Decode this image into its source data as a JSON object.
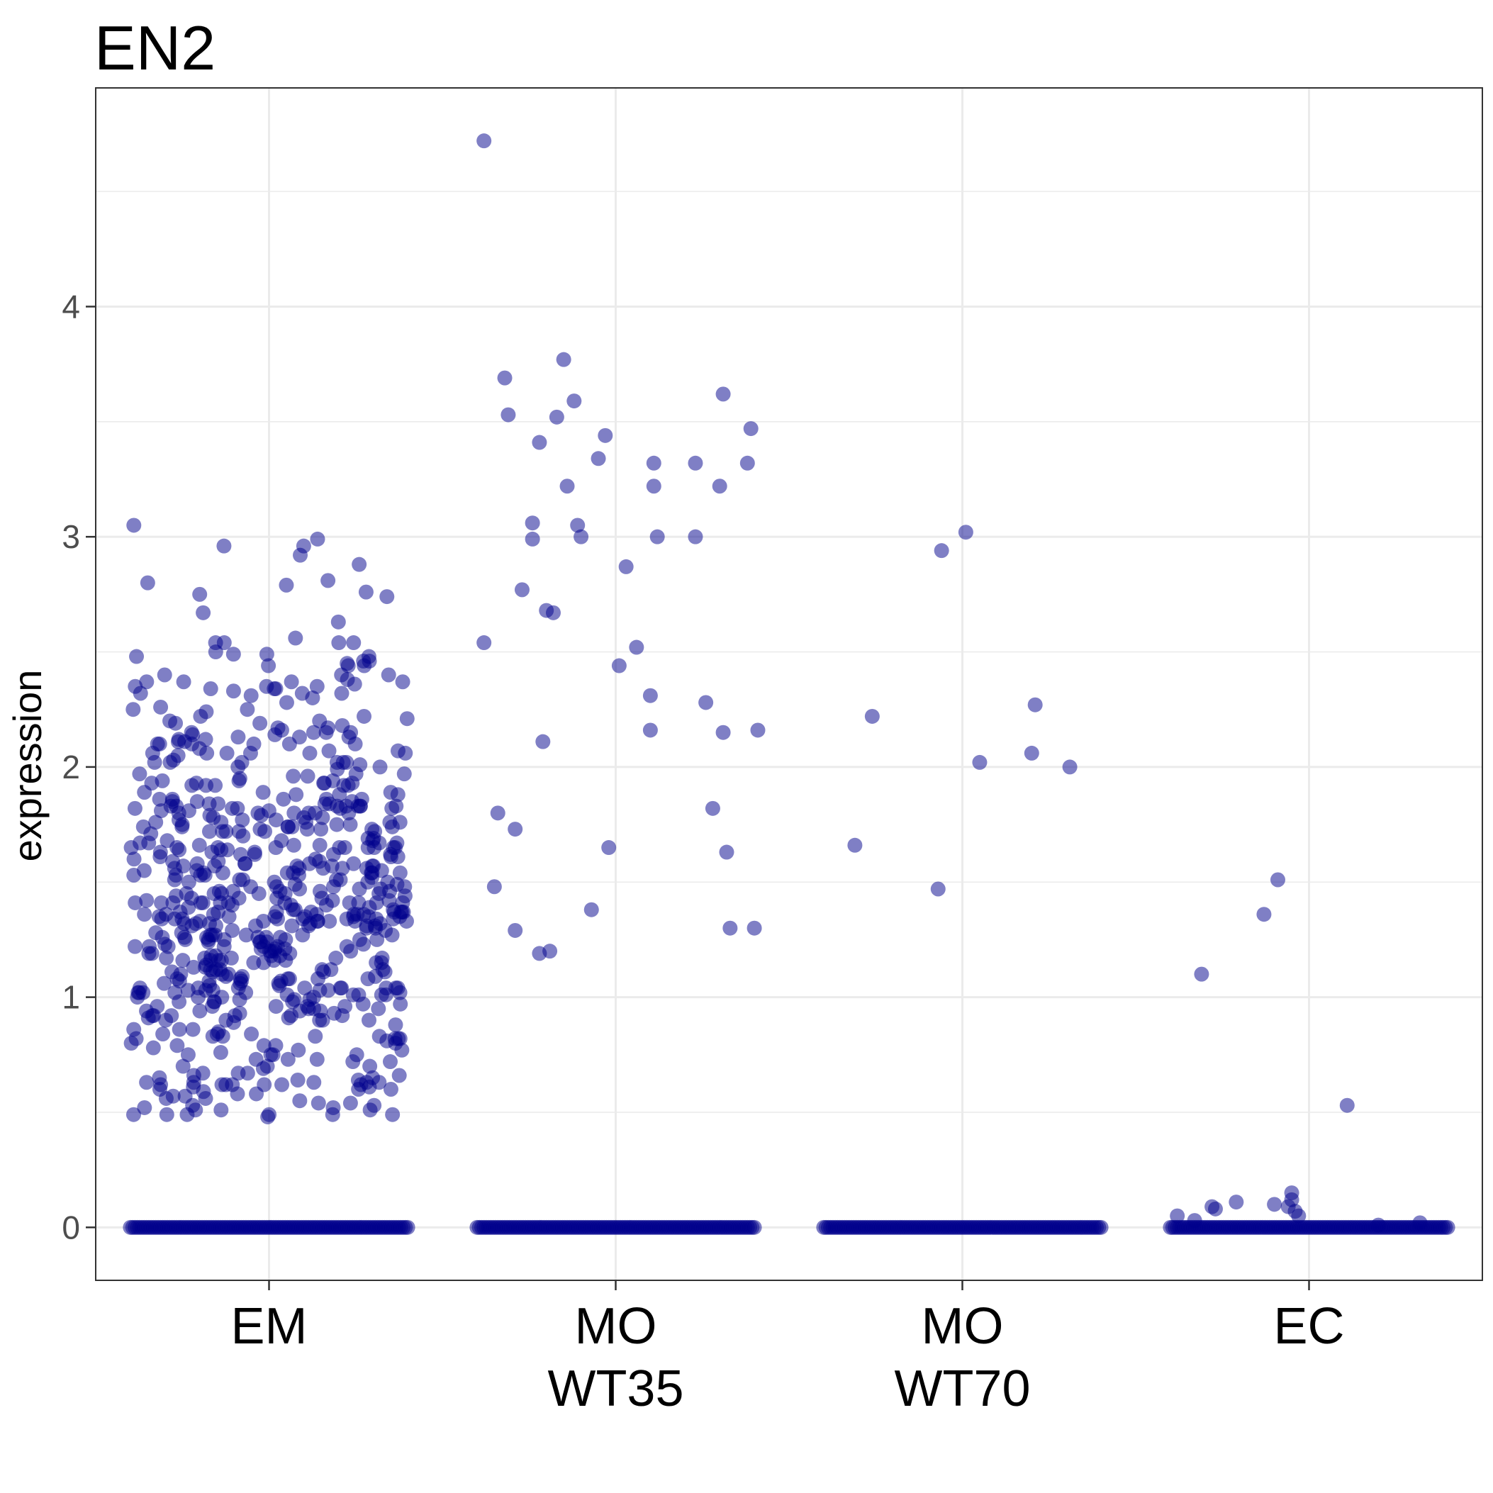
{
  "chart_data": {
    "type": "scatter",
    "style": "jitter strip plot",
    "title": "EN2",
    "xlabel": "",
    "ylabel": "expression",
    "ylim": [
      -0.23,
      4.95
    ],
    "yticks": [
      0,
      1,
      2,
      3,
      4
    ],
    "grid": true,
    "legend": "none",
    "point_color": "#00008B",
    "point_alpha": 0.5,
    "categories": [
      {
        "key": "EM",
        "label_lines": [
          "EM"
        ]
      },
      {
        "key": "MO_WT35",
        "label_lines": [
          "MO",
          "WT35"
        ]
      },
      {
        "key": "MO_WT70",
        "label_lines": [
          "MO",
          "WT70"
        ]
      },
      {
        "key": "EC",
        "label_lines": [
          "EC"
        ]
      }
    ],
    "points": {
      "MO_WT35": [
        [
          -0.38,
          4.72
        ],
        [
          -0.38,
          2.54
        ],
        [
          -0.35,
          1.48
        ],
        [
          -0.34,
          1.8
        ],
        [
          -0.32,
          3.69
        ],
        [
          -0.31,
          3.53
        ],
        [
          -0.29,
          1.73
        ],
        [
          -0.29,
          1.29
        ],
        [
          -0.27,
          2.77
        ],
        [
          -0.24,
          3.06
        ],
        [
          -0.24,
          2.99
        ],
        [
          -0.22,
          3.41
        ],
        [
          -0.22,
          1.19
        ],
        [
          -0.21,
          2.11
        ],
        [
          -0.2,
          2.68
        ],
        [
          -0.19,
          1.2
        ],
        [
          -0.18,
          2.67
        ],
        [
          -0.17,
          3.52
        ],
        [
          -0.15,
          3.77
        ],
        [
          -0.14,
          3.22
        ],
        [
          -0.12,
          3.59
        ],
        [
          -0.11,
          3.05
        ],
        [
          -0.1,
          3.0
        ],
        [
          -0.07,
          1.38
        ],
        [
          -0.05,
          3.34
        ],
        [
          -0.03,
          3.44
        ],
        [
          -0.02,
          1.65
        ],
        [
          0.01,
          2.44
        ],
        [
          0.03,
          2.87
        ],
        [
          0.06,
          2.52
        ],
        [
          0.1,
          2.16
        ],
        [
          0.1,
          2.31
        ],
        [
          0.11,
          3.32
        ],
        [
          0.11,
          3.22
        ],
        [
          0.12,
          3.0
        ],
        [
          0.23,
          3.32
        ],
        [
          0.23,
          3.0
        ],
        [
          0.26,
          2.28
        ],
        [
          0.28,
          1.82
        ],
        [
          0.3,
          3.22
        ],
        [
          0.31,
          3.62
        ],
        [
          0.31,
          2.15
        ],
        [
          0.32,
          1.63
        ],
        [
          0.33,
          1.3
        ],
        [
          0.38,
          3.32
        ],
        [
          0.39,
          3.47
        ],
        [
          0.4,
          1.3
        ],
        [
          0.41,
          2.16
        ]
      ],
      "MO_WT70": [
        [
          -0.31,
          1.66
        ],
        [
          -0.26,
          2.22
        ],
        [
          -0.07,
          1.47
        ],
        [
          -0.06,
          2.94
        ],
        [
          0.01,
          3.02
        ],
        [
          0.05,
          2.02
        ],
        [
          0.2,
          2.06
        ],
        [
          0.21,
          2.27
        ],
        [
          0.31,
          2.0
        ]
      ],
      "EC": [
        [
          -0.38,
          0.05
        ],
        [
          -0.33,
          0.03
        ],
        [
          -0.31,
          1.1
        ],
        [
          -0.28,
          0.09
        ],
        [
          -0.27,
          0.08
        ],
        [
          -0.21,
          0.11
        ],
        [
          -0.13,
          1.36
        ],
        [
          -0.1,
          0.1
        ],
        [
          -0.09,
          1.51
        ],
        [
          -0.06,
          0.09
        ],
        [
          -0.05,
          0.15
        ],
        [
          -0.05,
          0.12
        ],
        [
          -0.04,
          0.07
        ],
        [
          -0.03,
          0.05
        ],
        [
          0.11,
          0.53
        ],
        [
          0.2,
          0.01
        ],
        [
          0.32,
          0.02
        ]
      ]
    }
  }
}
